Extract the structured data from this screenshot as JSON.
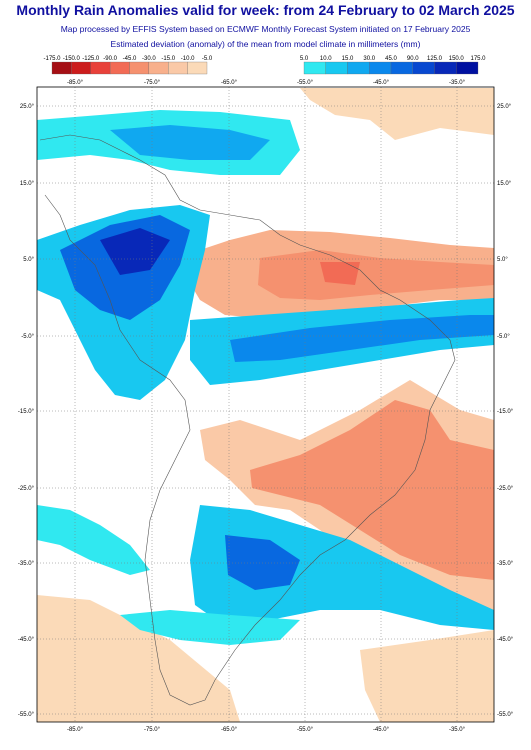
{
  "header": {
    "title": "Monthly Rain Anomalies valid for week: from 24 February to 02 March 2025",
    "subtitle1": "Map processed by EFFIS System based on ECMWF Monthly Forecast System initiated on 17 February 2025",
    "subtitle2": "Estimated deviation (anomaly) of the mean from model climate in millimeters (mm)"
  },
  "colorbar_dry": {
    "labels": [
      "-175.0",
      "-150.0",
      "-125.0",
      "-90.0",
      "-45.0",
      "-30.0",
      "-15.0",
      "-10.0",
      "-5.0"
    ],
    "colors": [
      "#a50f15",
      "#cc1c1c",
      "#e8413a",
      "#f26b55",
      "#f5916f",
      "#f8b08c",
      "#fac9a7",
      "#fbdab8"
    ]
  },
  "colorbar_wet": {
    "labels": [
      "5.0",
      "10.0",
      "15.0",
      "30.0",
      "45.0",
      "90.0",
      "125.0",
      "150.0",
      "175.0"
    ],
    "colors": [
      "#30e8f0",
      "#18c8f0",
      "#10a8f0",
      "#0a88ec",
      "#0868e0",
      "#0848d0",
      "#0828b8",
      "#0010a0"
    ]
  },
  "map": {
    "lon_labels": [
      "-85.0°",
      "-75.0°",
      "-65.0°",
      "-55.0°",
      "-45.0°",
      "-35.0°"
    ],
    "lat_labels": [
      "25.0°",
      "15.0°",
      "5.0°",
      "-5.0°",
      "-15.0°",
      "-25.0°",
      "-35.0°",
      "-45.0°",
      "-55.0°"
    ]
  }
}
